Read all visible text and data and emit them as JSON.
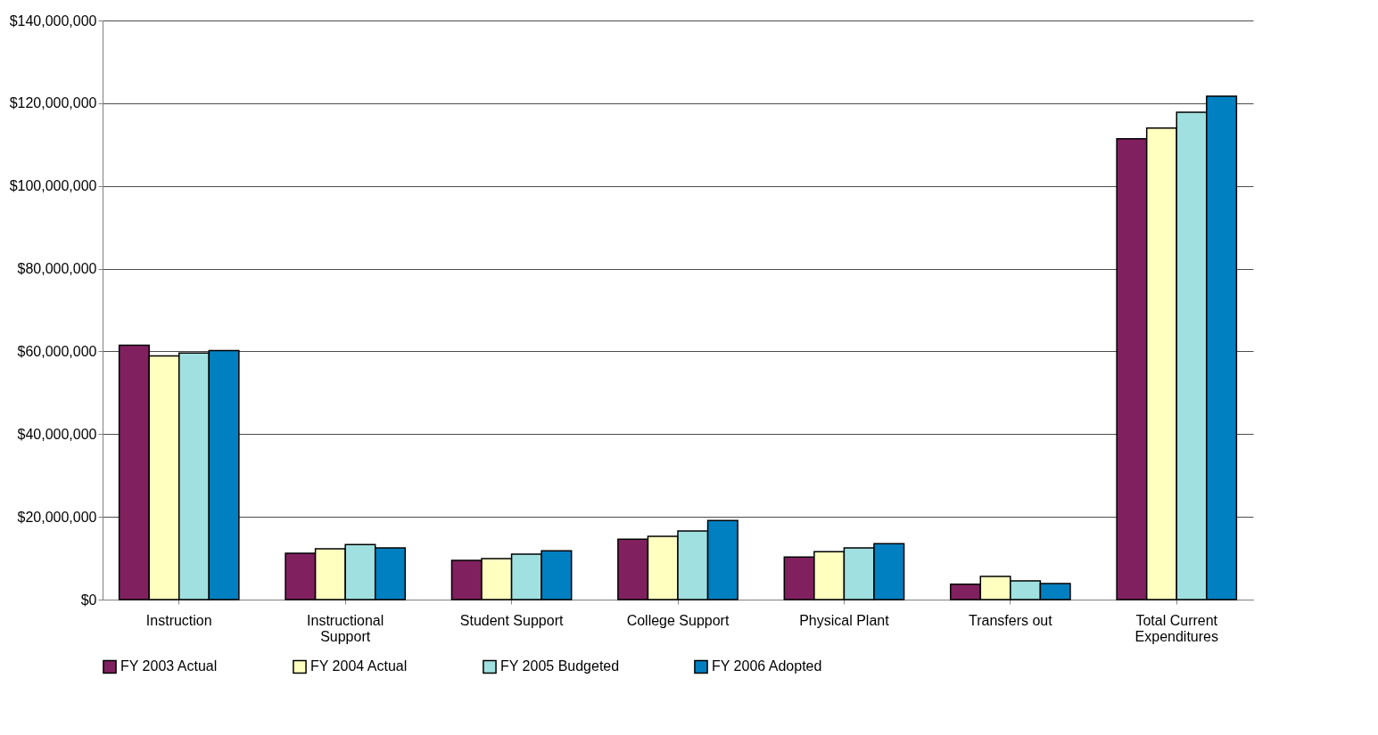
{
  "chart_data": {
    "type": "bar",
    "categories": [
      "Instruction",
      "Instructional Support",
      "Student Support",
      "College Support",
      "Physical Plant",
      "Transfers out",
      "Total Current Expenditures"
    ],
    "series": [
      {
        "name": "FY 2003 Actual",
        "color": "#80205f",
        "values": [
          61500000,
          11200000,
          9500000,
          14600000,
          10300000,
          3700000,
          111400000
        ]
      },
      {
        "name": "FY 2004 Actual",
        "color": "#ffffc0",
        "values": [
          58900000,
          12300000,
          9900000,
          15300000,
          11600000,
          5600000,
          114000000
        ]
      },
      {
        "name": "FY 2005 Budgeted",
        "color": "#a0e0e0",
        "values": [
          59600000,
          13300000,
          11000000,
          16600000,
          12500000,
          4500000,
          117800000
        ]
      },
      {
        "name": "FY 2006 Adopted",
        "color": "#0080c0",
        "values": [
          60200000,
          12500000,
          11800000,
          19100000,
          13500000,
          3900000,
          121700000
        ]
      }
    ],
    "ylim": [
      0,
      140000000
    ],
    "yticks": [
      {
        "value": 0,
        "label": "$0"
      },
      {
        "value": 20000000,
        "label": "$20,000,000"
      },
      {
        "value": 40000000,
        "label": "$40,000,000"
      },
      {
        "value": 60000000,
        "label": "$60,000,000"
      },
      {
        "value": 80000000,
        "label": "$80,000,000"
      },
      {
        "value": 100000000,
        "label": "$100,000,000"
      },
      {
        "value": 120000000,
        "label": "$120,000,000"
      },
      {
        "value": 140000000,
        "label": "$140,000,000"
      }
    ],
    "grid": "y",
    "legend": "bottom"
  }
}
